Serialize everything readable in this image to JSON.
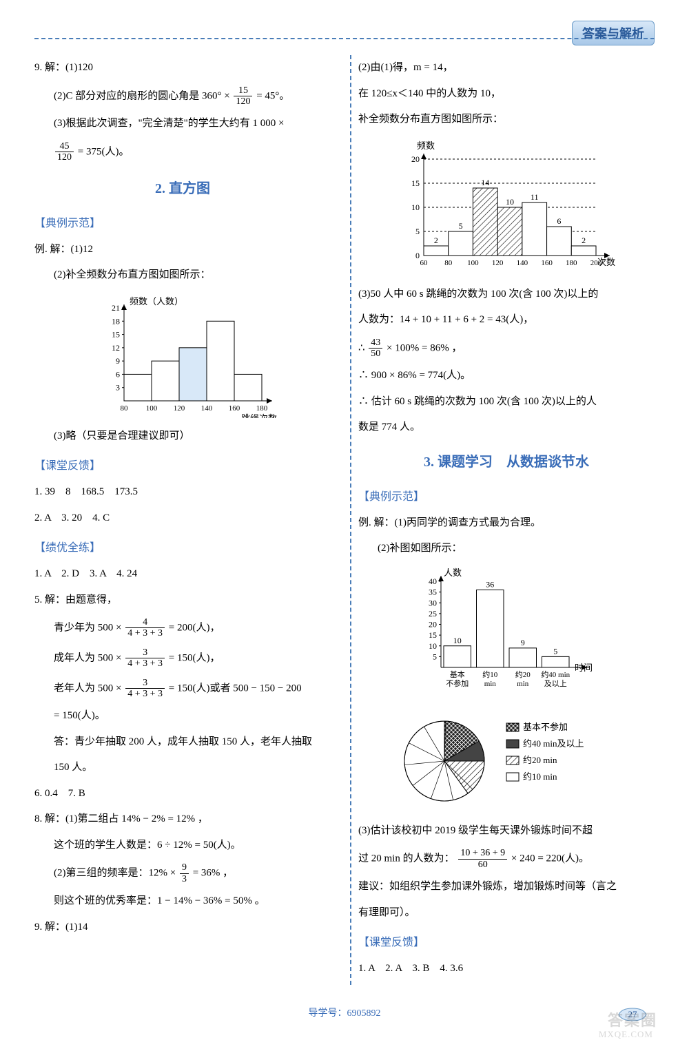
{
  "header": {
    "badge": "答案与解析"
  },
  "left": {
    "l9a": "9. 解：(1)120",
    "l9b_pre": "(2)C 部分对应的扇形的圆心角是 360° ×",
    "l9b_frac_num": "15",
    "l9b_frac_den": "120",
    "l9b_post": "= 45°。",
    "l9c": "(3)根据此次调查，\"完全清楚\"的学生大约有 1 000 ×",
    "l9c_frac_num": "45",
    "l9c_frac_den": "120",
    "l9c_post": "= 375(人)。",
    "sec2_title": "2. 直方图",
    "sub_dianli": "【典例示范】",
    "ex_a": "例. 解：(1)12",
    "ex_b": "(2)补全频数分布直方图如图所示：",
    "chart1": {
      "ylabel": "频数（人数）",
      "xlabel": "跳绳次数",
      "yticks": [
        "3",
        "6",
        "9",
        "12",
        "15",
        "18",
        "21"
      ],
      "xticks": [
        "80",
        "100",
        "120",
        "140",
        "160",
        "180"
      ],
      "values": [
        6,
        9,
        12,
        18,
        6
      ],
      "ymax": 21,
      "bar_color": "#ffffff",
      "stroke": "#000000",
      "highlight_idx": 2,
      "highlight_color": "#d8e8f8"
    },
    "ex_c": "(3)略（只要是合理建议即可）",
    "sub_ketang": "【课堂反馈】",
    "kt1": "1. 39　8　168.5　173.5",
    "kt2": "2. A　3. 20　4. C",
    "sub_jiyou": "【绩优全练】",
    "jy1": "1. A　2. D　3. A　4. 24",
    "jy5": "5. 解：由题意得，",
    "jy5a_pre": "青少年为 500 ×",
    "jy5a_num": "4",
    "jy5a_den": "4 + 3 + 3",
    "jy5a_post": "= 200(人)，",
    "jy5b_pre": "成年人为 500 ×",
    "jy5b_num": "3",
    "jy5b_den": "4 + 3 + 3",
    "jy5b_post": "= 150(人)，",
    "jy5c_pre": "老年人为 500 ×",
    "jy5c_num": "3",
    "jy5c_den": "4 + 3 + 3",
    "jy5c_post": "= 150(人)或者 500 − 150 − 200",
    "jy5c2": "= 150(人)。",
    "jy5d": "答：青少年抽取 200 人，成年人抽取 150 人，老年人抽取",
    "jy5e": "150 人。",
    "jy6": "6. 0.4　7. B",
    "jy8a": "8. 解：(1)第二组占 14% − 2% = 12% ，",
    "jy8b": "这个班的学生人数是：6 ÷ 12% = 50(人)。",
    "jy8c_pre": "(2)第三组的频率是：12% ×",
    "jy8c_num": "9",
    "jy8c_den": "3",
    "jy8c_post": "= 36% ，",
    "jy8d": "则这个班的优秀率是：1 − 14% − 36% = 50% 。",
    "jy9": "9. 解：(1)14"
  },
  "right": {
    "r2a": "(2)由(1)得，m = 14，",
    "r2b": "在 120≤x＜140 中的人数为 10，",
    "r2c": "补全频数分布直方图如图所示：",
    "chart2": {
      "ylabel": "频数",
      "xlabel": "次数",
      "yticks": [
        "0",
        "5",
        "10",
        "15",
        "20"
      ],
      "xticks": [
        "60",
        "80",
        "100",
        "120",
        "140",
        "160",
        "180",
        "200"
      ],
      "values": [
        2,
        5,
        14,
        10,
        11,
        6,
        2
      ],
      "labels_top": [
        "2",
        "5",
        "14",
        "10",
        "11",
        "6",
        "2"
      ],
      "ymax": 20,
      "bar_color": "#ffffff",
      "stroke": "#000000",
      "highlight_idx": [
        2,
        3
      ],
      "highlight_fill": "hatch"
    },
    "r3a": "(3)50 人中 60 s 跳绳的次数为 100 次(含 100 次)以上的",
    "r3b": "人数为：14 + 10 + 11 + 6 + 2 = 43(人)，",
    "r3c_pre": "∴",
    "r3c_num": "43",
    "r3c_den": "50",
    "r3c_post": "× 100% = 86% ，",
    "r3d": "∴ 900 × 86% = 774(人)。",
    "r3e": "∴ 估计 60 s 跳绳的次数为 100 次(含 100 次)以上的人",
    "r3f": "数是 774 人。",
    "sec3_title": "3. 课题学习　从数据谈节水",
    "sub_dianli": "【典例示范】",
    "ex_a": "例. 解：(1)丙同学的调查方式最为合理。",
    "ex_b": "(2)补图如图所示：",
    "chart3": {
      "ylabel": "人数",
      "xlabel": "时间",
      "yticks": [
        "5",
        "10",
        "15",
        "20",
        "25",
        "30",
        "35",
        "40"
      ],
      "xcats": [
        "基本\n不参加",
        "约10\nmin",
        "约20\nmin",
        "约40 min\n及以上"
      ],
      "values": [
        10,
        36,
        9,
        5
      ],
      "labels_top": [
        "10",
        "36",
        "9",
        "5"
      ],
      "ymax": 40,
      "bar_color": "#ffffff",
      "stroke": "#000000"
    },
    "pie": {
      "legend": [
        {
          "label": "基本不参加",
          "fill": "crosshatch",
          "color": "#222222"
        },
        {
          "label": "约40 min及以上",
          "fill": "dark",
          "color": "#444444"
        },
        {
          "label": "约20 min",
          "fill": "hatch",
          "color": "#888888"
        },
        {
          "label": "约10 min",
          "fill": "white",
          "color": "#ffffff"
        }
      ],
      "slices": [
        10,
        5,
        9,
        36
      ],
      "radius_guides": 12
    },
    "r_last1": "(3)估计该校初中 2019 级学生每天课外锻炼时间不超",
    "r_last2_pre": "过 20 min 的人数为：",
    "r_last2_num": "10 + 36 + 9",
    "r_last2_den": "60",
    "r_last2_post": "× 240 = 220(人)。",
    "r_last3": "建议：如组织学生参加课外锻炼，增加锻炼时间等（言之",
    "r_last4": "有理即可）。",
    "sub_ketang": "【课堂反馈】",
    "kt": "1. A　2. A　3. B　4. 3.6"
  },
  "footer": {
    "text": "导学号：6905892",
    "page": "27"
  },
  "watermark": {
    "a": "答案圈",
    "b": "MXQE.COM"
  }
}
